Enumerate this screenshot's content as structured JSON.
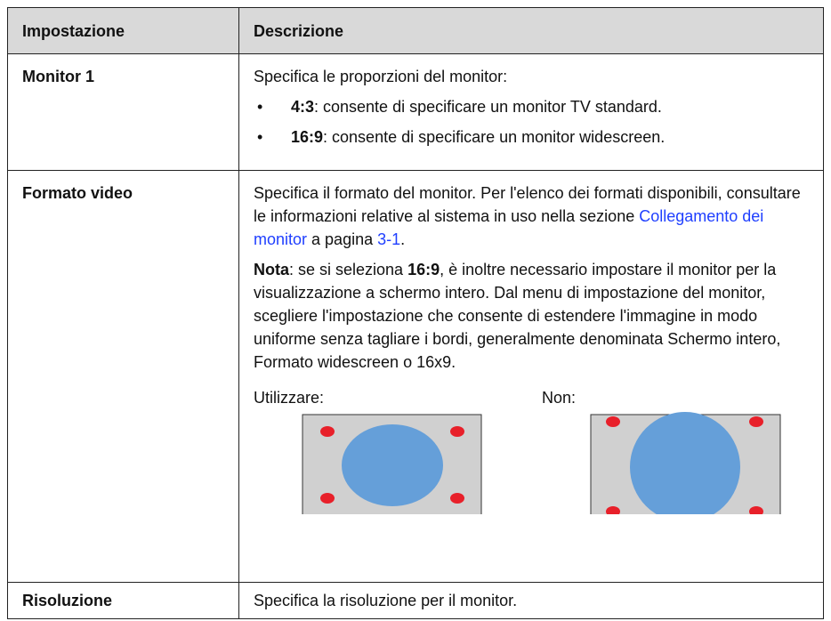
{
  "header": {
    "setting": "Impostazione",
    "description": "Descrizione"
  },
  "rows": [
    {
      "setting": "Monitor 1",
      "intro": "Specifica le proporzioni del monitor:",
      "bullets": [
        {
          "term": "4:3",
          "text": ": consente di specificare un monitor TV standard."
        },
        {
          "term": "16:9",
          "text": ": consente di specificare un monitor widescreen."
        }
      ]
    },
    {
      "setting": "Formato video",
      "paragraph": {
        "before": "Specifica il formato del monitor. Per l'elenco dei formati disponibili, consultare le informazioni relative al sistema in uso nella sezione ",
        "link": "Collegamento dei monitor",
        "middle": " a pagina ",
        "page_link": "3-1",
        "after": "."
      },
      "note": {
        "label": "Nota",
        "before": ": se si seleziona ",
        "term": "16:9",
        "after": ", è inoltre necessario impostare il monitor per la visualizzazione a schermo intero. Dal menu di impostazione del monitor, scegliere l'impostazione che consente di estendere l'immagine in modo uniforme senza tagliare i bordi, generalmente denominata Schermo intero, Formato widescreen o 16x9."
      },
      "examples": {
        "good": "Utilizzare:",
        "bad": "Non:"
      }
    },
    {
      "setting": "Risoluzione",
      "intro": "Specifica la risoluzione per il monitor."
    }
  ]
}
